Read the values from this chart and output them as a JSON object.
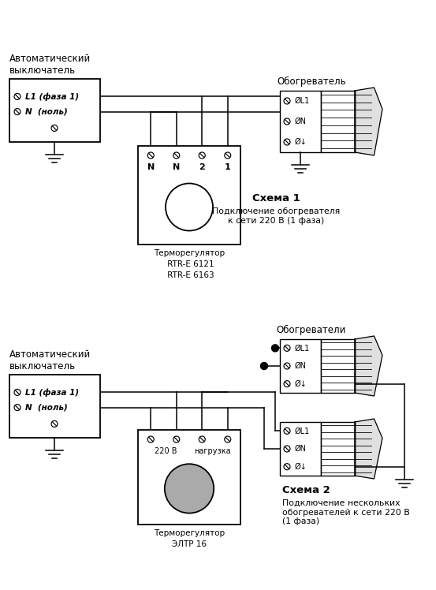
{
  "bg": "#ffffff",
  "lc": "#000000",
  "lw": 1.1,
  "s1": {
    "cb_title": "Автоматический\nвыключатель",
    "cb_L1": "L1 (фаза 1)",
    "cb_N": "N  (ноль)",
    "heater_title": "Обогреватель",
    "thermo_terms": [
      "N",
      "N",
      "2",
      "1"
    ],
    "thermo_title1": "Терморегулятор",
    "thermo_title2": " RTR-E 6121",
    "thermo_title3": " RTR-E 6163",
    "schema_title": "Схема 1",
    "schema_desc": "Подключение обогревателя\nк сети 220 В (1 фаза)",
    "hterm": [
      "ØL1",
      "ØN",
      "Ø↓"
    ]
  },
  "s2": {
    "cb_title": "Автоматический\nвыключатель",
    "cb_L1": "L1 (фаза 1)",
    "cb_N": "N  (ноль)",
    "heaters_title": "Обогреватели",
    "thermo_lbl_l": "220 В",
    "thermo_lbl_r": "нагрузка",
    "thermo_title1": "Терморегулятор",
    "thermo_title2": "ЭЛТР 16",
    "schema_title": "Схема 2",
    "schema_desc": "Подключение нескольких\nобогревателей к сети 220 В\n(1 фаза)",
    "hterm": [
      "ØL1",
      "ØN",
      "Ø↓"
    ]
  }
}
